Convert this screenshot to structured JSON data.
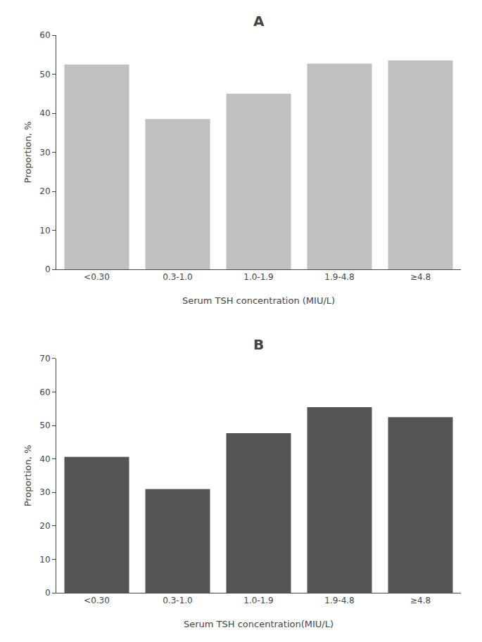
{
  "chart_data": [
    {
      "type": "bar",
      "title": "A",
      "categories": [
        "<0.30",
        "0.3-1.0",
        "1.0-1.9",
        "1.9-4.8",
        "≥4.8"
      ],
      "values": [
        52.5,
        38.5,
        45.0,
        52.7,
        53.5
      ],
      "color": "#c0c0c0",
      "xlabel": "Serum TSH concentration (MIU/L)",
      "ylabel": "Proportion, %",
      "ylim": [
        0,
        60
      ],
      "yticks": [
        0,
        10,
        20,
        30,
        40,
        50,
        60
      ],
      "grid": false
    },
    {
      "type": "bar",
      "title": "B",
      "categories": [
        "<0.30",
        "0.3-1.0",
        "1.0-1.9",
        "1.9-4.8",
        "≥4.8"
      ],
      "values": [
        40.6,
        31.0,
        47.7,
        55.5,
        52.5
      ],
      "color": "#555555",
      "xlabel": "Serum TSH concentration(MIU/L)",
      "ylabel": "Proportion, %",
      "ylim": [
        0,
        70
      ],
      "yticks": [
        0,
        10,
        20,
        30,
        40,
        50,
        60,
        70
      ],
      "grid": false
    }
  ]
}
